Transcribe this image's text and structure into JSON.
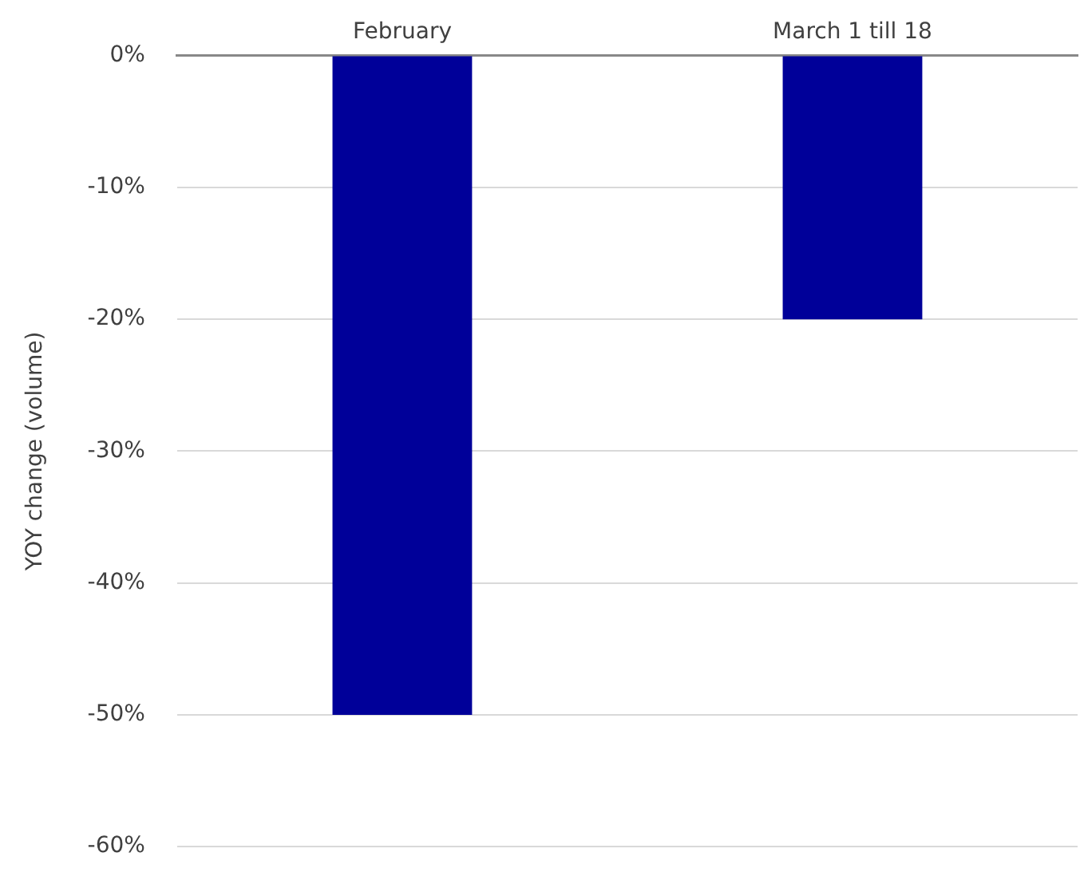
{
  "chart_data": {
    "type": "bar",
    "ylabel": "YOY change (volume)",
    "categories": [
      "February",
      "March 1 till 18"
    ],
    "values": [
      -50,
      -20
    ],
    "color": "#000099",
    "ylim": [
      -60,
      0
    ],
    "yticks": [
      {
        "value": 0,
        "label": "0%"
      },
      {
        "value": -10,
        "label": "-10%"
      },
      {
        "value": -20,
        "label": "-20%"
      },
      {
        "value": -30,
        "label": "-30%"
      },
      {
        "value": -40,
        "label": "-40%"
      },
      {
        "value": -50,
        "label": "-50%"
      },
      {
        "value": -60,
        "label": "-60%"
      }
    ],
    "grid": "y"
  }
}
